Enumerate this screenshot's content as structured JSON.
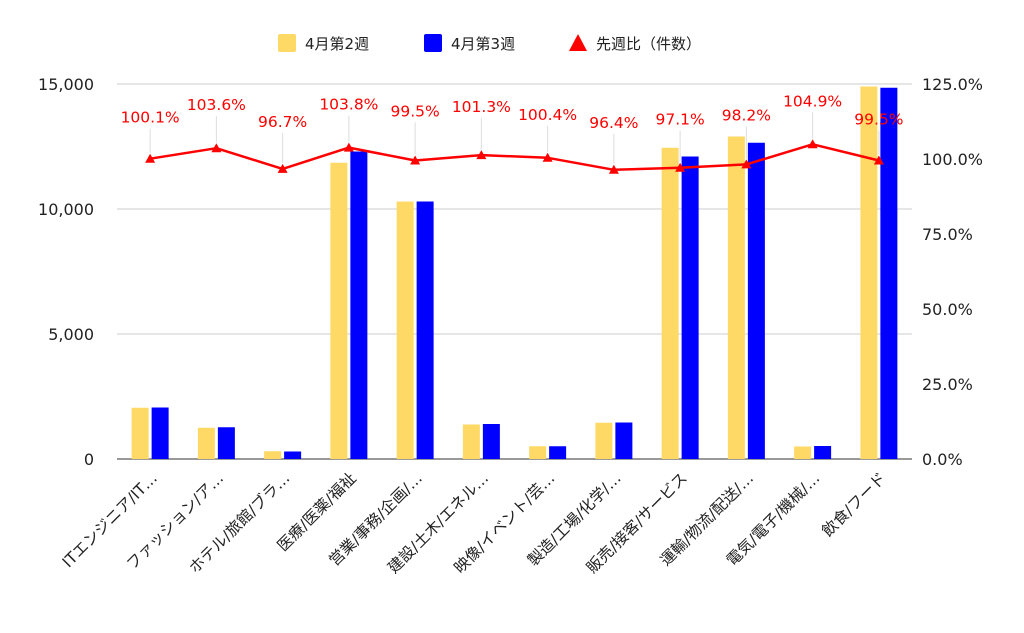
{
  "chart_data": {
    "type": "bar",
    "categories": [
      "ITエンジニア/IT…",
      "ファッション/ア…",
      "ホテル/旅館/ブラ…",
      "医療/医薬/福祉",
      "営業/事務/企画/…",
      "建設/土木/エネル…",
      "映像/イベント/芸…",
      "製造/工場/化学/…",
      "販売/接客/サービス",
      "運輸/物流/配送/…",
      "電気/電子/機械/…",
      "飲食/フード"
    ],
    "series": [
      {
        "name": "4月第2週",
        "type": "bar",
        "axis": "left",
        "color": "#ffd966",
        "values": [
          2050,
          1250,
          310,
          11850,
          10300,
          1380,
          510,
          1450,
          12450,
          12900,
          500,
          14900
        ]
      },
      {
        "name": "4月第3週",
        "type": "bar",
        "axis": "left",
        "color": "#0000ff",
        "values": [
          2060,
          1270,
          300,
          12300,
          10300,
          1400,
          510,
          1460,
          12100,
          12650,
          520,
          14850
        ]
      },
      {
        "name": "先週比（件数）",
        "type": "line",
        "axis": "right",
        "color": "#ff0000",
        "values": [
          100.1,
          103.6,
          96.7,
          103.8,
          99.5,
          101.3,
          100.4,
          96.4,
          97.1,
          98.2,
          104.9,
          99.5
        ]
      }
    ],
    "data_labels": [
      "100.1%",
      "103.6%",
      "96.7%",
      "103.8%",
      "99.5%",
      "101.3%",
      "100.4%",
      "96.4%",
      "97.1%",
      "98.2%",
      "104.9%",
      "99.5%"
    ],
    "y_left": {
      "ylim": [
        0,
        15000
      ],
      "ticks": [
        0,
        5000,
        10000,
        15000
      ],
      "tick_labels": [
        "0",
        "5,000",
        "10,000",
        "15,000"
      ]
    },
    "y_right": {
      "ylim": [
        0,
        125
      ],
      "ticks": [
        0,
        25,
        50,
        75,
        100,
        125
      ],
      "tick_labels": [
        "0.0%",
        "25.0%",
        "50.0%",
        "75.0%",
        "100.0%",
        "125.0%"
      ]
    },
    "grid": true,
    "legend_position": "top-center"
  }
}
